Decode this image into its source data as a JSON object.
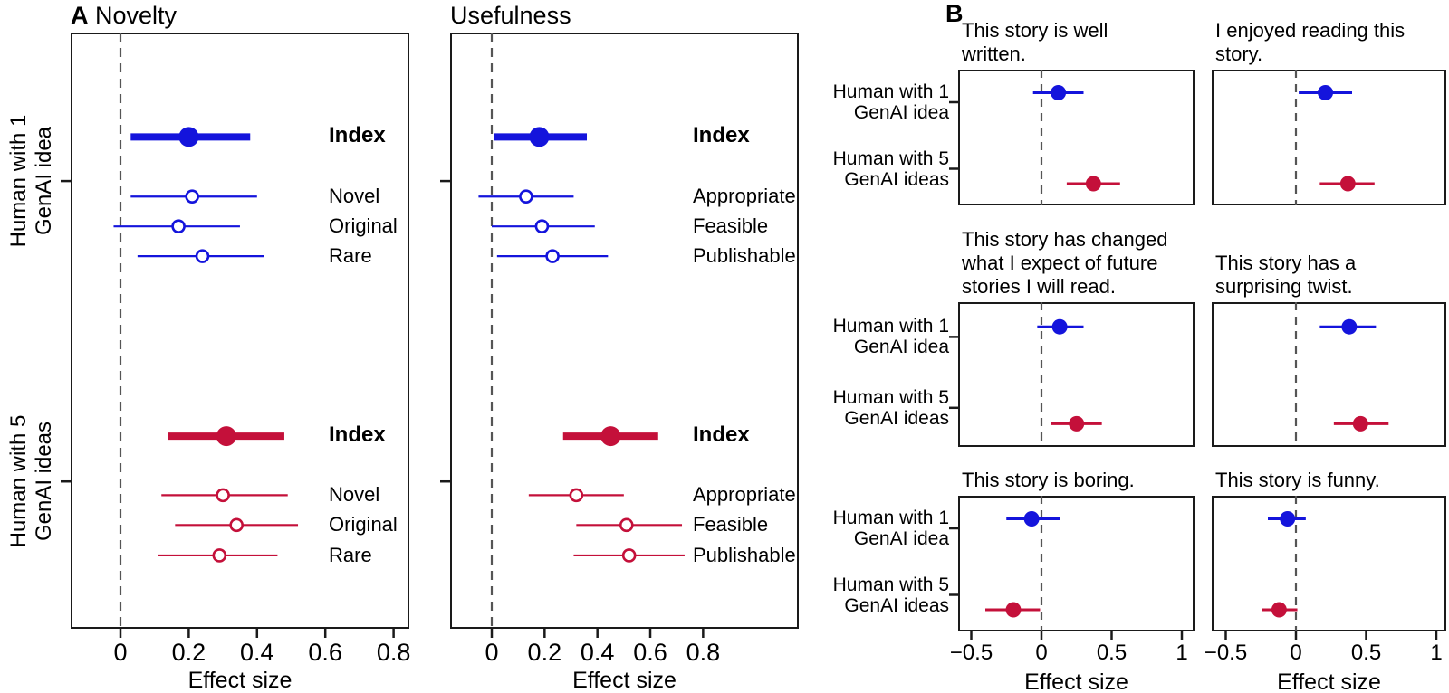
{
  "chart_data": {
    "type": "forest",
    "colors": {
      "blue": "#1414DC",
      "red": "#C4103A",
      "zero_line": "#555555",
      "axis": "#1a1a1a"
    },
    "group_labels": [
      [
        "Human with 1",
        "GenAI idea"
      ],
      [
        "Human with 5",
        "GenAI ideas"
      ]
    ],
    "panelA": {
      "letter": "A",
      "xlabel": "Effect size",
      "xticks": [
        "0",
        "0.2",
        "0.4",
        "0.6",
        "0.8"
      ],
      "xtick_values": [
        0,
        0.2,
        0.4,
        0.6,
        0.8
      ],
      "subplots": [
        {
          "title": "Novelty",
          "xlim": [
            -0.15,
            0.85
          ],
          "groups": [
            {
              "group_label": "Human with 1 GenAI idea",
              "color": "blue",
              "rows": [
                {
                  "label": "Index",
                  "emphasis": true,
                  "value": 0.2,
                  "ci": [
                    0.03,
                    0.38
                  ]
                },
                {
                  "label": "Novel",
                  "emphasis": false,
                  "value": 0.21,
                  "ci": [
                    0.03,
                    0.4
                  ]
                },
                {
                  "label": "Original",
                  "emphasis": false,
                  "value": 0.17,
                  "ci": [
                    -0.02,
                    0.35
                  ]
                },
                {
                  "label": "Rare",
                  "emphasis": false,
                  "value": 0.24,
                  "ci": [
                    0.05,
                    0.42
                  ]
                }
              ]
            },
            {
              "group_label": "Human with 5 GenAI ideas",
              "color": "red",
              "rows": [
                {
                  "label": "Index",
                  "emphasis": true,
                  "value": 0.31,
                  "ci": [
                    0.14,
                    0.48
                  ]
                },
                {
                  "label": "Novel",
                  "emphasis": false,
                  "value": 0.3,
                  "ci": [
                    0.12,
                    0.49
                  ]
                },
                {
                  "label": "Original",
                  "emphasis": false,
                  "value": 0.34,
                  "ci": [
                    0.16,
                    0.52
                  ]
                },
                {
                  "label": "Rare",
                  "emphasis": false,
                  "value": 0.29,
                  "ci": [
                    0.11,
                    0.46
                  ]
                }
              ]
            }
          ]
        },
        {
          "title": "Usefulness",
          "xlim": [
            -0.16,
            1.16
          ],
          "groups": [
            {
              "group_label": "Human with 1 GenAI idea",
              "color": "blue",
              "rows": [
                {
                  "label": "Index",
                  "emphasis": true,
                  "value": 0.18,
                  "ci": [
                    0.01,
                    0.36
                  ]
                },
                {
                  "label": "Appropriate",
                  "emphasis": false,
                  "value": 0.13,
                  "ci": [
                    -0.05,
                    0.31
                  ]
                },
                {
                  "label": "Feasible",
                  "emphasis": false,
                  "value": 0.19,
                  "ci": [
                    0,
                    0.39
                  ]
                },
                {
                  "label": "Publishable",
                  "emphasis": false,
                  "value": 0.23,
                  "ci": [
                    0.02,
                    0.44
                  ]
                }
              ]
            },
            {
              "group_label": "Human with 5 GenAI ideas",
              "color": "red",
              "rows": [
                {
                  "label": "Index",
                  "emphasis": true,
                  "value": 0.45,
                  "ci": [
                    0.27,
                    0.63
                  ]
                },
                {
                  "label": "Appropriate",
                  "emphasis": false,
                  "value": 0.32,
                  "ci": [
                    0.14,
                    0.5
                  ]
                },
                {
                  "label": "Feasible",
                  "emphasis": false,
                  "value": 0.51,
                  "ci": [
                    0.32,
                    0.72
                  ]
                },
                {
                  "label": "Publishable",
                  "emphasis": false,
                  "value": 0.52,
                  "ci": [
                    0.31,
                    0.73
                  ]
                }
              ]
            }
          ]
        }
      ]
    },
    "panelB": {
      "letter": "B",
      "xlabel": "Effect size",
      "xticks": [
        "−0.5",
        "0",
        "0.5",
        "1"
      ],
      "xtick_values": [
        -0.5,
        0,
        0.5,
        1
      ],
      "xlim": [
        -0.6,
        1.09
      ],
      "subplots": [
        {
          "title_lines": [
            "This story is well",
            "written."
          ],
          "series": [
            {
              "group": "Human with 1 GenAI idea",
              "color": "blue",
              "value": 0.12,
              "ci": [
                -0.06,
                0.3
              ]
            },
            {
              "group": "Human with 5 GenAI ideas",
              "color": "red",
              "value": 0.37,
              "ci": [
                0.18,
                0.56
              ]
            }
          ]
        },
        {
          "title_lines": [
            "I enjoyed reading this",
            "story."
          ],
          "series": [
            {
              "group": "Human with 1 GenAI idea",
              "color": "blue",
              "value": 0.21,
              "ci": [
                0.02,
                0.4
              ]
            },
            {
              "group": "Human with 5 GenAI ideas",
              "color": "red",
              "value": 0.37,
              "ci": [
                0.17,
                0.56
              ]
            }
          ]
        },
        {
          "title_lines": [
            "This story has changed",
            "what I expect of future",
            "stories I will read."
          ],
          "series": [
            {
              "group": "Human with 1 GenAI idea",
              "color": "blue",
              "value": 0.13,
              "ci": [
                -0.03,
                0.3
              ]
            },
            {
              "group": "Human with 5 GenAI ideas",
              "color": "red",
              "value": 0.25,
              "ci": [
                0.07,
                0.43
              ]
            }
          ]
        },
        {
          "title_lines": [
            "This story has a",
            "surprising twist."
          ],
          "series": [
            {
              "group": "Human with 1 GenAI idea",
              "color": "blue",
              "value": 0.38,
              "ci": [
                0.17,
                0.57
              ]
            },
            {
              "group": "Human with 5 GenAI ideas",
              "color": "red",
              "value": 0.46,
              "ci": [
                0.27,
                0.66
              ]
            }
          ]
        },
        {
          "title_lines": [
            "This story is boring."
          ],
          "series": [
            {
              "group": "Human with 1 GenAI idea",
              "color": "blue",
              "value": -0.07,
              "ci": [
                -0.25,
                0.13
              ]
            },
            {
              "group": "Human with 5 GenAI ideas",
              "color": "red",
              "value": -0.2,
              "ci": [
                -0.4,
                -0.01
              ]
            }
          ]
        },
        {
          "title_lines": [
            "This story is funny."
          ],
          "series": [
            {
              "group": "Human with 1 GenAI idea",
              "color": "blue",
              "value": -0.06,
              "ci": [
                -0.2,
                0.07
              ]
            },
            {
              "group": "Human with 5 GenAI ideas",
              "color": "red",
              "value": -0.12,
              "ci": [
                -0.24,
                0.01
              ]
            }
          ]
        }
      ]
    }
  }
}
